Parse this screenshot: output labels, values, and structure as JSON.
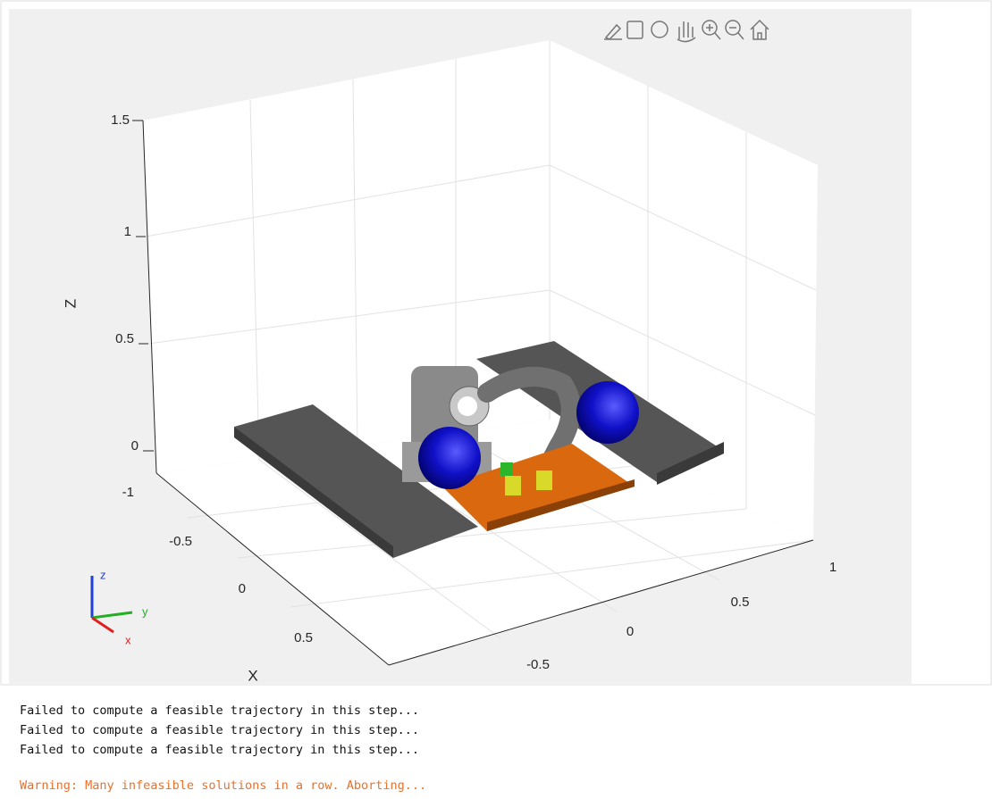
{
  "plot": {
    "z_label": "Z",
    "x_label": "X",
    "z_ticks": [
      "1.5",
      "1",
      "0.5",
      "0"
    ],
    "x_ticks": [
      "-1",
      "-0.5",
      "0",
      "0.5"
    ],
    "y_ticks": [
      "-0.5",
      "0",
      "0.5",
      "1"
    ],
    "triad": {
      "z": "z",
      "y": "y",
      "x": "x"
    }
  },
  "output": {
    "lines": [
      "Failed to compute a feasible trajectory in this step...",
      "Failed to compute a feasible trajectory in this step...",
      "Failed to compute a feasible trajectory in this step..."
    ],
    "warning": "Warning: Many infeasible solutions in a row. Aborting..."
  }
}
